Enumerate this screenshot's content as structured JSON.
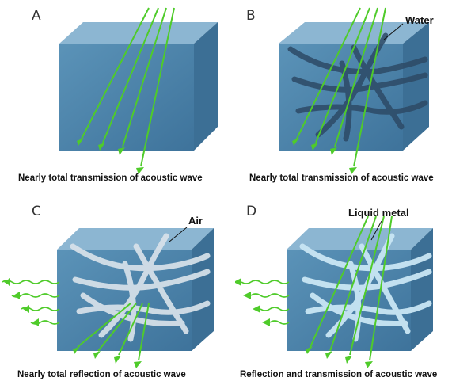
{
  "panels": [
    {
      "letter": "A",
      "callout": "",
      "caption": "Nearly total transmission of acoustic wave"
    },
    {
      "letter": "B",
      "callout": "Water",
      "caption": "Nearly total transmission of acoustic wave"
    },
    {
      "letter": "C",
      "callout": "Air",
      "caption": "Nearly total reflection of acoustic  wave"
    },
    {
      "letter": "D",
      "callout": "Liquid metal",
      "caption": "Reflection and transmission of acoustic  wave"
    }
  ],
  "colors": {
    "block_front": "#4f86ad",
    "block_top": "#8db7d4",
    "block_side": "#3b6f96",
    "wave": "#4fcb2a",
    "water_tube": "#2d4a66",
    "air_tube": "#d8e2ea",
    "metal_tube": "#c9e6f4"
  }
}
